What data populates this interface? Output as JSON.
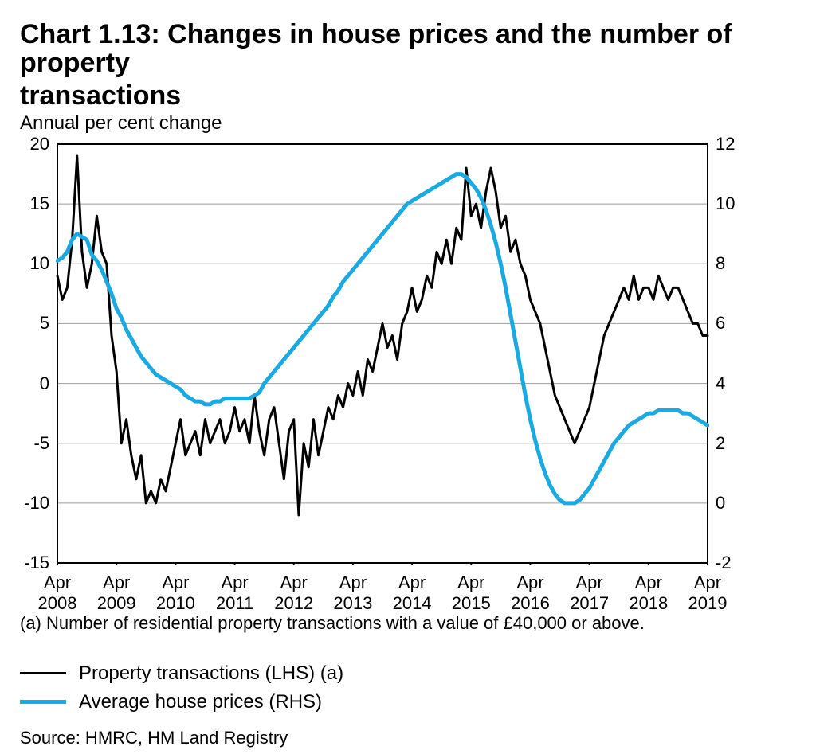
{
  "title_line1": "Chart 1.13: Changes in house prices and the number of property",
  "title_line2": "transactions",
  "subtitle": "Annual per cent change",
  "footnote": "(a) Number of residential property transactions with a value of £40,000 or above.",
  "legend": {
    "series1": "Property transactions (LHS) (a)",
    "series2": "Average house prices (RHS)"
  },
  "source": "Source: HMRC, HM Land Registry",
  "chart": {
    "type": "line",
    "background_color": "#ffffff",
    "grid_color": "#9f9f9f",
    "axis_color": "#000000",
    "axis_width": 2,
    "grid_width": 1,
    "left_axis": {
      "min": -15,
      "max": 20,
      "ticks": [
        -15,
        -10,
        -5,
        0,
        5,
        10,
        15,
        20
      ],
      "title": ""
    },
    "right_axis": {
      "min": -2,
      "max": 12,
      "ticks": [
        -2,
        0,
        2,
        4,
        6,
        8,
        10,
        12
      ],
      "title": ""
    },
    "x": {
      "min": 0,
      "max": 132,
      "ticks": [
        0,
        12,
        24,
        36,
        48,
        60,
        72,
        84,
        96,
        108,
        120,
        132
      ],
      "labels": [
        "Apr 2008",
        "Apr 2009",
        "Apr 2010",
        "Apr 2011",
        "Apr 2012",
        "Apr 2013",
        "Apr 2014",
        "Apr 2015",
        "Apr 2016",
        "Apr 2017",
        "Apr 2018",
        "Apr 2019"
      ]
    },
    "label_fontsize": 22,
    "series": [
      {
        "name": "Property transactions (LHS)",
        "axis": "left",
        "color": "#000000",
        "width": 3,
        "data": [
          [
            0,
            9
          ],
          [
            1,
            7
          ],
          [
            2,
            8
          ],
          [
            3,
            12
          ],
          [
            4,
            19
          ],
          [
            5,
            11
          ],
          [
            6,
            8
          ],
          [
            7,
            10
          ],
          [
            8,
            14
          ],
          [
            9,
            11
          ],
          [
            10,
            10
          ],
          [
            11,
            4
          ],
          [
            12,
            1
          ],
          [
            13,
            -5
          ],
          [
            14,
            -3
          ],
          [
            15,
            -6
          ],
          [
            16,
            -8
          ],
          [
            17,
            -6
          ],
          [
            18,
            -10
          ],
          [
            19,
            -9
          ],
          [
            20,
            -10
          ],
          [
            21,
            -8
          ],
          [
            22,
            -9
          ],
          [
            23,
            -7
          ],
          [
            24,
            -5
          ],
          [
            25,
            -3
          ],
          [
            26,
            -6
          ],
          [
            27,
            -5
          ],
          [
            28,
            -4
          ],
          [
            29,
            -6
          ],
          [
            30,
            -3
          ],
          [
            31,
            -5
          ],
          [
            32,
            -4
          ],
          [
            33,
            -3
          ],
          [
            34,
            -5
          ],
          [
            35,
            -4
          ],
          [
            36,
            -2
          ],
          [
            37,
            -4
          ],
          [
            38,
            -3
          ],
          [
            39,
            -5
          ],
          [
            40,
            -1
          ],
          [
            41,
            -4
          ],
          [
            42,
            -6
          ],
          [
            43,
            -3
          ],
          [
            44,
            -2
          ],
          [
            45,
            -5
          ],
          [
            46,
            -8
          ],
          [
            47,
            -4
          ],
          [
            48,
            -3
          ],
          [
            49,
            -11
          ],
          [
            50,
            -5
          ],
          [
            51,
            -7
          ],
          [
            52,
            -3
          ],
          [
            53,
            -6
          ],
          [
            54,
            -4
          ],
          [
            55,
            -2
          ],
          [
            56,
            -3
          ],
          [
            57,
            -1
          ],
          [
            58,
            -2
          ],
          [
            59,
            0
          ],
          [
            60,
            -1
          ],
          [
            61,
            1
          ],
          [
            62,
            -1
          ],
          [
            63,
            2
          ],
          [
            64,
            1
          ],
          [
            65,
            3
          ],
          [
            66,
            5
          ],
          [
            67,
            3
          ],
          [
            68,
            4
          ],
          [
            69,
            2
          ],
          [
            70,
            5
          ],
          [
            71,
            6
          ],
          [
            72,
            8
          ],
          [
            73,
            6
          ],
          [
            74,
            7
          ],
          [
            75,
            9
          ],
          [
            76,
            8
          ],
          [
            77,
            11
          ],
          [
            78,
            10
          ],
          [
            79,
            12
          ],
          [
            80,
            10
          ],
          [
            81,
            13
          ],
          [
            82,
            12
          ],
          [
            83,
            18
          ],
          [
            84,
            14
          ],
          [
            85,
            15
          ],
          [
            86,
            13
          ],
          [
            87,
            16
          ],
          [
            88,
            18
          ],
          [
            89,
            16
          ],
          [
            90,
            13
          ],
          [
            91,
            14
          ],
          [
            92,
            11
          ],
          [
            93,
            12
          ],
          [
            94,
            10
          ],
          [
            95,
            9
          ],
          [
            96,
            7
          ],
          [
            97,
            6
          ],
          [
            98,
            5
          ],
          [
            99,
            3
          ],
          [
            100,
            1
          ],
          [
            101,
            -1
          ],
          [
            102,
            -2
          ],
          [
            103,
            -3
          ],
          [
            104,
            -4
          ],
          [
            105,
            -5
          ],
          [
            106,
            -4
          ],
          [
            107,
            -3
          ],
          [
            108,
            -2
          ],
          [
            109,
            0
          ],
          [
            110,
            2
          ],
          [
            111,
            4
          ],
          [
            112,
            5
          ],
          [
            113,
            6
          ],
          [
            114,
            7
          ],
          [
            115,
            8
          ],
          [
            116,
            7
          ],
          [
            117,
            9
          ],
          [
            118,
            7
          ],
          [
            119,
            8
          ],
          [
            120,
            8
          ],
          [
            121,
            7
          ],
          [
            122,
            9
          ],
          [
            123,
            8
          ],
          [
            124,
            7
          ],
          [
            125,
            8
          ],
          [
            126,
            8
          ],
          [
            127,
            7
          ],
          [
            128,
            6
          ],
          [
            129,
            5
          ],
          [
            130,
            5
          ],
          [
            131,
            4
          ],
          [
            132,
            4
          ]
        ]
      },
      {
        "name": "Average house prices (RHS)",
        "axis": "right",
        "color": "#1aa9e0",
        "width": 5,
        "data": [
          [
            0,
            8.1
          ],
          [
            1,
            8.2
          ],
          [
            2,
            8.4
          ],
          [
            3,
            8.8
          ],
          [
            4,
            9.0
          ],
          [
            5,
            8.9
          ],
          [
            6,
            8.8
          ],
          [
            7,
            8.3
          ],
          [
            8,
            8.1
          ],
          [
            9,
            7.8
          ],
          [
            10,
            7.4
          ],
          [
            11,
            7.0
          ],
          [
            12,
            6.5
          ],
          [
            13,
            6.2
          ],
          [
            14,
            5.8
          ],
          [
            15,
            5.5
          ],
          [
            16,
            5.2
          ],
          [
            17,
            4.9
          ],
          [
            18,
            4.7
          ],
          [
            19,
            4.5
          ],
          [
            20,
            4.3
          ],
          [
            21,
            4.2
          ],
          [
            22,
            4.1
          ],
          [
            23,
            4.0
          ],
          [
            24,
            3.9
          ],
          [
            25,
            3.8
          ],
          [
            26,
            3.6
          ],
          [
            27,
            3.5
          ],
          [
            28,
            3.4
          ],
          [
            29,
            3.4
          ],
          [
            30,
            3.3
          ],
          [
            31,
            3.3
          ],
          [
            32,
            3.4
          ],
          [
            33,
            3.4
          ],
          [
            34,
            3.5
          ],
          [
            35,
            3.5
          ],
          [
            36,
            3.5
          ],
          [
            37,
            3.5
          ],
          [
            38,
            3.5
          ],
          [
            39,
            3.5
          ],
          [
            40,
            3.6
          ],
          [
            41,
            3.7
          ],
          [
            42,
            4.0
          ],
          [
            43,
            4.2
          ],
          [
            44,
            4.4
          ],
          [
            45,
            4.6
          ],
          [
            46,
            4.8
          ],
          [
            47,
            5.0
          ],
          [
            48,
            5.2
          ],
          [
            49,
            5.4
          ],
          [
            50,
            5.6
          ],
          [
            51,
            5.8
          ],
          [
            52,
            6.0
          ],
          [
            53,
            6.2
          ],
          [
            54,
            6.4
          ],
          [
            55,
            6.6
          ],
          [
            56,
            6.9
          ],
          [
            57,
            7.1
          ],
          [
            58,
            7.4
          ],
          [
            59,
            7.6
          ],
          [
            60,
            7.8
          ],
          [
            61,
            8.0
          ],
          [
            62,
            8.2
          ],
          [
            63,
            8.4
          ],
          [
            64,
            8.6
          ],
          [
            65,
            8.8
          ],
          [
            66,
            9.0
          ],
          [
            67,
            9.2
          ],
          [
            68,
            9.4
          ],
          [
            69,
            9.6
          ],
          [
            70,
            9.8
          ],
          [
            71,
            10.0
          ],
          [
            72,
            10.1
          ],
          [
            73,
            10.2
          ],
          [
            74,
            10.3
          ],
          [
            75,
            10.4
          ],
          [
            76,
            10.5
          ],
          [
            77,
            10.6
          ],
          [
            78,
            10.7
          ],
          [
            79,
            10.8
          ],
          [
            80,
            10.9
          ],
          [
            81,
            11.0
          ],
          [
            82,
            11.0
          ],
          [
            83,
            10.9
          ],
          [
            84,
            10.7
          ],
          [
            85,
            10.5
          ],
          [
            86,
            10.2
          ],
          [
            87,
            9.8
          ],
          [
            88,
            9.3
          ],
          [
            89,
            8.7
          ],
          [
            90,
            8.0
          ],
          [
            91,
            7.2
          ],
          [
            92,
            6.3
          ],
          [
            93,
            5.4
          ],
          [
            94,
            4.5
          ],
          [
            95,
            3.6
          ],
          [
            96,
            2.8
          ],
          [
            97,
            2.1
          ],
          [
            98,
            1.5
          ],
          [
            99,
            1.0
          ],
          [
            100,
            0.6
          ],
          [
            101,
            0.3
          ],
          [
            102,
            0.1
          ],
          [
            103,
            0.0
          ],
          [
            104,
            0.0
          ],
          [
            105,
            0.0
          ],
          [
            106,
            0.1
          ],
          [
            107,
            0.3
          ],
          [
            108,
            0.5
          ],
          [
            109,
            0.8
          ],
          [
            110,
            1.1
          ],
          [
            111,
            1.4
          ],
          [
            112,
            1.7
          ],
          [
            113,
            2.0
          ],
          [
            114,
            2.2
          ],
          [
            115,
            2.4
          ],
          [
            116,
            2.6
          ],
          [
            117,
            2.7
          ],
          [
            118,
            2.8
          ],
          [
            119,
            2.9
          ],
          [
            120,
            3.0
          ],
          [
            121,
            3.0
          ],
          [
            122,
            3.1
          ],
          [
            123,
            3.1
          ],
          [
            124,
            3.1
          ],
          [
            125,
            3.1
          ],
          [
            126,
            3.1
          ],
          [
            127,
            3.0
          ],
          [
            128,
            3.0
          ],
          [
            129,
            2.9
          ],
          [
            130,
            2.8
          ],
          [
            131,
            2.7
          ],
          [
            132,
            2.6
          ]
        ]
      }
    ]
  }
}
